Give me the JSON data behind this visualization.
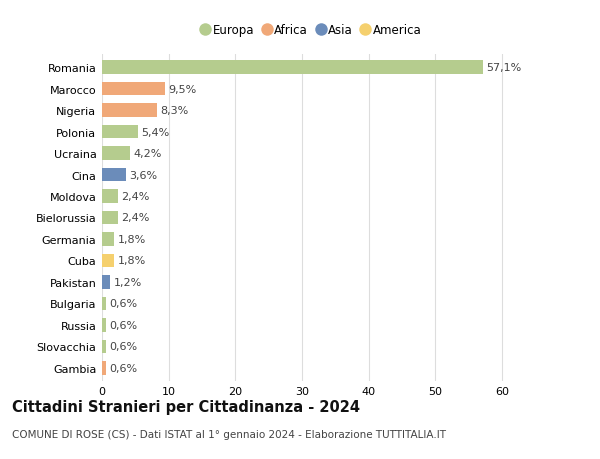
{
  "countries": [
    "Romania",
    "Marocco",
    "Nigeria",
    "Polonia",
    "Ucraina",
    "Cina",
    "Moldova",
    "Bielorussia",
    "Germania",
    "Cuba",
    "Pakistan",
    "Bulgaria",
    "Russia",
    "Slovacchia",
    "Gambia"
  ],
  "values": [
    57.1,
    9.5,
    8.3,
    5.4,
    4.2,
    3.6,
    2.4,
    2.4,
    1.8,
    1.8,
    1.2,
    0.6,
    0.6,
    0.6,
    0.6
  ],
  "labels": [
    "57,1%",
    "9,5%",
    "8,3%",
    "5,4%",
    "4,2%",
    "3,6%",
    "2,4%",
    "2,4%",
    "1,8%",
    "1,8%",
    "1,2%",
    "0,6%",
    "0,6%",
    "0,6%",
    "0,6%"
  ],
  "continents": [
    "Europa",
    "Africa",
    "Africa",
    "Europa",
    "Europa",
    "Asia",
    "Europa",
    "Europa",
    "Europa",
    "America",
    "Asia",
    "Europa",
    "Europa",
    "Europa",
    "Africa"
  ],
  "continent_colors": {
    "Europa": "#b5cc8e",
    "Africa": "#f0a878",
    "Asia": "#6b8cba",
    "America": "#f5d06e"
  },
  "legend_order": [
    "Europa",
    "Africa",
    "Asia",
    "America"
  ],
  "title": "Cittadini Stranieri per Cittadinanza - 2024",
  "subtitle": "COMUNE DI ROSE (CS) - Dati ISTAT al 1° gennaio 2024 - Elaborazione TUTTITALIA.IT",
  "xlim": [
    0,
    63
  ],
  "xticks": [
    0,
    10,
    20,
    30,
    40,
    50,
    60
  ],
  "bg_color": "#ffffff",
  "grid_color": "#dddddd",
  "bar_height": 0.62,
  "label_fontsize": 8,
  "tick_fontsize": 8,
  "title_fontsize": 10.5,
  "subtitle_fontsize": 7.5
}
